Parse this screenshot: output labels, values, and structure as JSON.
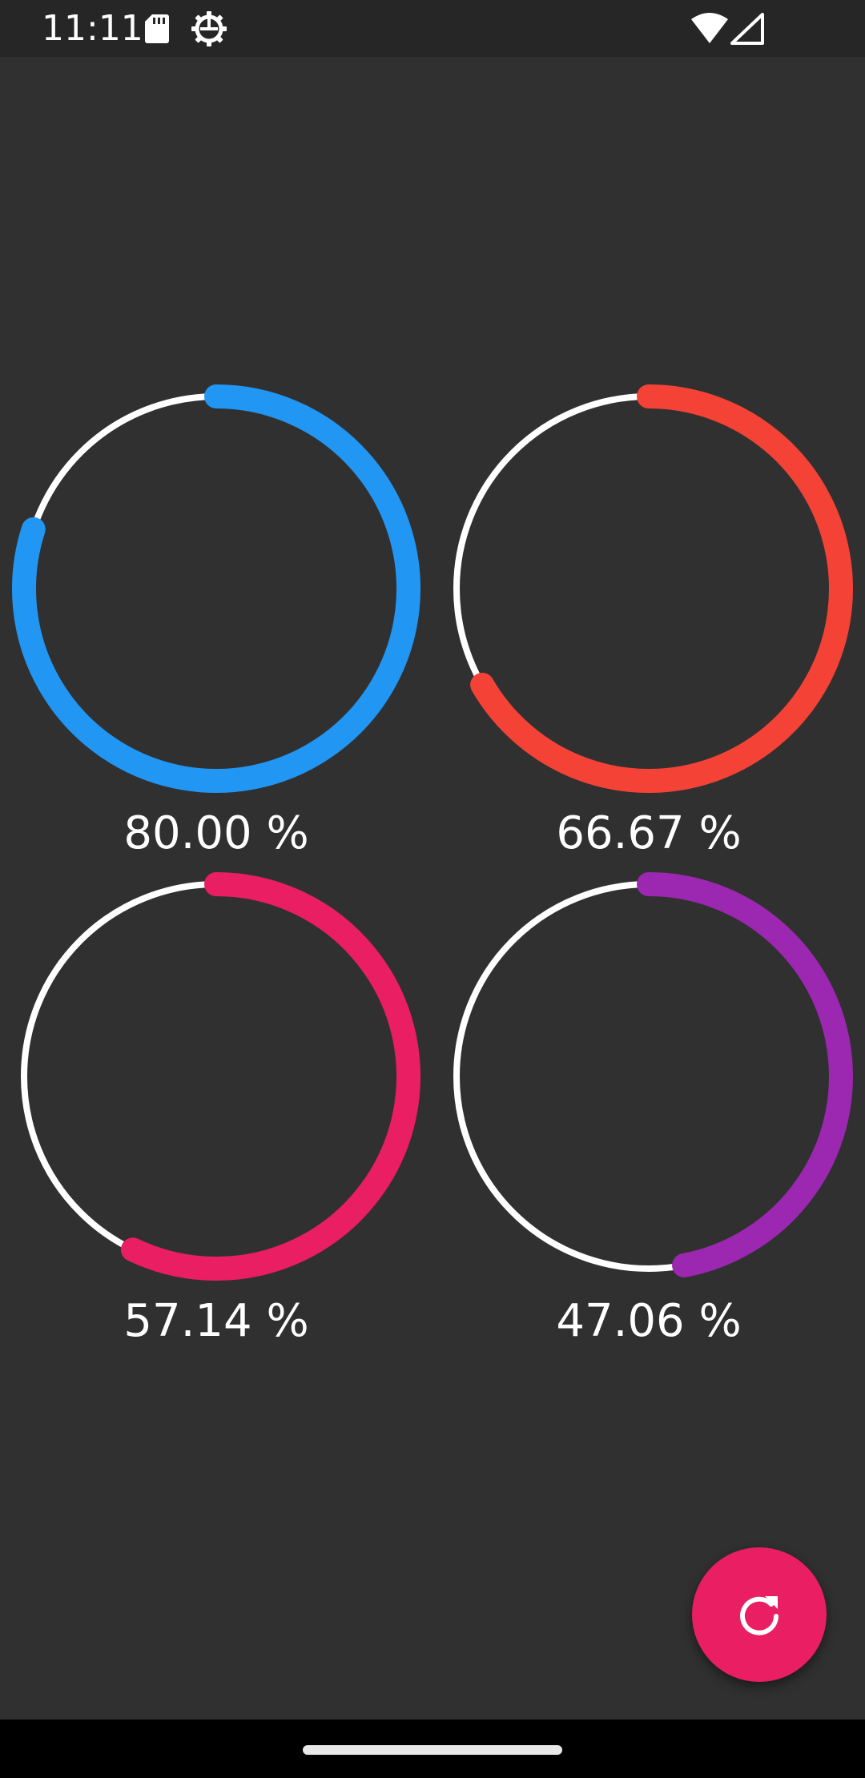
{
  "status_bar": {
    "time": "11:11",
    "icons": [
      "sd-card-icon",
      "settings-gear-icon",
      "wifi-icon",
      "cell-signal-icon"
    ]
  },
  "colors": {
    "background": "#303030",
    "track": "#ffffff",
    "fab": "#e91e63"
  },
  "gauges": [
    {
      "label": "80.00 %",
      "value": 80.0,
      "color": "#2196f3"
    },
    {
      "label": "66.67 %",
      "value": 66.67,
      "color": "#f44336"
    },
    {
      "label": "57.14 %",
      "value": 57.14,
      "color": "#e91e63"
    },
    {
      "label": "47.06 %",
      "value": 47.06,
      "color": "#9c27b0"
    }
  ],
  "fab": {
    "icon": "refresh-icon"
  }
}
